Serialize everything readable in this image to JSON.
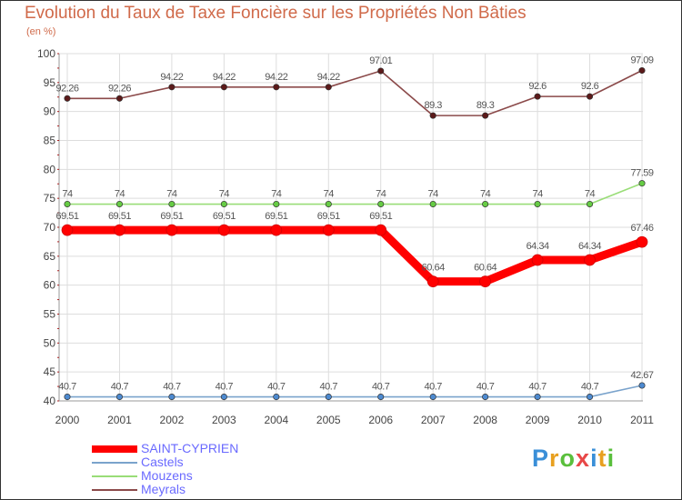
{
  "header": {
    "title": "Evolution du Taux de Taxe Foncière sur les Propriétés Non Bâties",
    "subtitle": "(en %)"
  },
  "logo": {
    "text": "Proxiti"
  },
  "chart_data": {
    "type": "line",
    "title": "Evolution du Taux de Taxe Foncière sur les Propriétés Non Bâties",
    "ylabel": "(en %)",
    "xlabel": "",
    "ylim": [
      40,
      100
    ],
    "yticks": [
      40,
      45,
      50,
      55,
      60,
      65,
      70,
      75,
      80,
      85,
      90,
      95,
      100
    ],
    "x": [
      "2000",
      "2001",
      "2002",
      "2003",
      "2004",
      "2005",
      "2006",
      "2007",
      "2008",
      "2009",
      "2010",
      "2011"
    ],
    "grid": true,
    "legend_position": "bottom-left",
    "series": [
      {
        "name": "SAINT-CYPRIEN",
        "color": "#ff0000",
        "values": [
          69.51,
          69.51,
          69.51,
          69.51,
          69.51,
          69.51,
          69.51,
          60.64,
          60.64,
          64.34,
          64.34,
          67.46
        ],
        "labels": [
          "69.51",
          "69.51",
          "69.51",
          "69.51",
          "69.51",
          "69.51",
          "69.51",
          "60.64",
          "60.64",
          "64.34",
          "64.34",
          "67.46"
        ]
      },
      {
        "name": "Castels",
        "color": "#7aa3cc",
        "values": [
          40.7,
          40.7,
          40.7,
          40.7,
          40.7,
          40.7,
          40.7,
          40.7,
          40.7,
          40.7,
          40.7,
          42.67
        ],
        "labels": [
          "40.7",
          "40.7",
          "40.7",
          "40.7",
          "40.7",
          "40.7",
          "40.7",
          "40.7",
          "40.7",
          "40.7",
          "40.7",
          "42.67"
        ]
      },
      {
        "name": "Mouzens",
        "color": "#99dd77",
        "values": [
          74,
          74,
          74,
          74,
          74,
          74,
          74,
          74,
          74,
          74,
          74,
          77.59
        ],
        "labels": [
          "74",
          "74",
          "74",
          "74",
          "74",
          "74",
          "74",
          "74",
          "74",
          "74",
          "74",
          "77.59"
        ]
      },
      {
        "name": "Meyrals",
        "color": "#8b4a4a",
        "values": [
          92.26,
          92.26,
          94.22,
          94.22,
          94.22,
          94.22,
          97.01,
          89.3,
          89.3,
          92.6,
          92.6,
          97.09
        ],
        "labels": [
          "92.26",
          "92.26",
          "94.22",
          "94.22",
          "94.22",
          "94.22",
          "97.01",
          "89.3",
          "89.3",
          "92.6",
          "92.6",
          "97.09"
        ]
      }
    ]
  }
}
